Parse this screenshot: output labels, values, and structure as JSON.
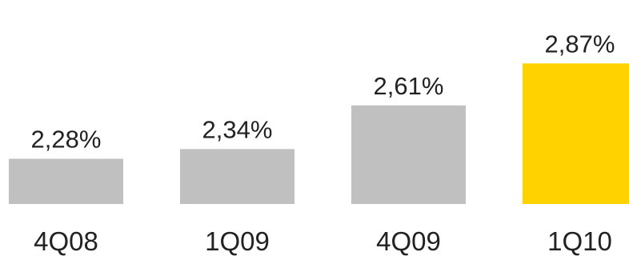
{
  "chart_data": {
    "type": "bar",
    "categories": [
      "4Q08",
      "1Q09",
      "4Q09",
      "1Q10"
    ],
    "values": [
      2.28,
      2.34,
      2.61,
      2.87
    ],
    "value_labels": [
      "2,28%",
      "2,34%",
      "2,61%",
      "2,87%"
    ],
    "bar_colors": [
      "#c0c0c0",
      "#c0c0c0",
      "#c0c0c0",
      "#ffd200"
    ],
    "title": "",
    "xlabel": "",
    "ylabel": "",
    "grid": false,
    "legend": "none"
  }
}
